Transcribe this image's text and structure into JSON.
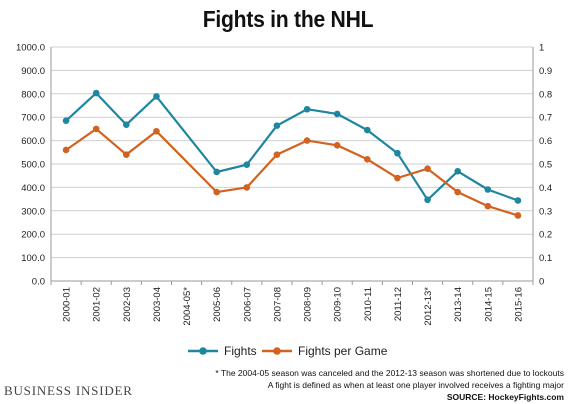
{
  "title": "Fights in the NHL",
  "logo": "BUSINESS INSIDER",
  "notes": [
    "* The 2004-05  season was canceled and the 2012-13 season was shortened due to lockouts",
    "A fight is defined as when at least one player involved receives a fighting major",
    "SOURCE: HockeyFights.com"
  ],
  "colors": {
    "fights": "#1f86a0",
    "fights_per_game": "#d2621f",
    "grid": "#cfcfcf"
  },
  "chart_data": {
    "type": "line",
    "title": "Fights in the NHL",
    "categories": [
      "2000-01",
      "2001-02",
      "2002-03",
      "2003-04",
      "2004-05*",
      "2005-06",
      "2006-07",
      "2007-08",
      "2008-09",
      "2009-10",
      "2010-11",
      "2011-12",
      "2012-13*",
      "2013-14",
      "2014-15",
      "2015-16"
    ],
    "series": [
      {
        "name": "Fights",
        "axis": "left",
        "values": [
          685,
          803,
          668,
          789,
          null,
          466,
          497,
          664,
          734,
          714,
          645,
          546,
          347,
          469,
          391,
          344
        ]
      },
      {
        "name": "Fights per Game",
        "axis": "right",
        "values": [
          0.56,
          0.65,
          0.54,
          0.64,
          null,
          0.38,
          0.4,
          0.54,
          0.6,
          0.58,
          0.52,
          0.44,
          0.48,
          0.38,
          0.32,
          0.28
        ]
      }
    ],
    "y_left": {
      "min": 0,
      "max": 1000,
      "step": 100,
      "ticks": [
        "0.0",
        "100.0",
        "200.0",
        "300.0",
        "400.0",
        "500.0",
        "600.0",
        "700.0",
        "800.0",
        "900.0",
        "1000.0"
      ]
    },
    "y_right": {
      "min": 0,
      "max": 1,
      "step": 0.1,
      "ticks": [
        "0",
        "0.1",
        "0.2",
        "0.3",
        "0.4",
        "0.5",
        "0.6",
        "0.7",
        "0.8",
        "0.9",
        "1"
      ]
    },
    "grid": true,
    "legend_position": "bottom"
  }
}
